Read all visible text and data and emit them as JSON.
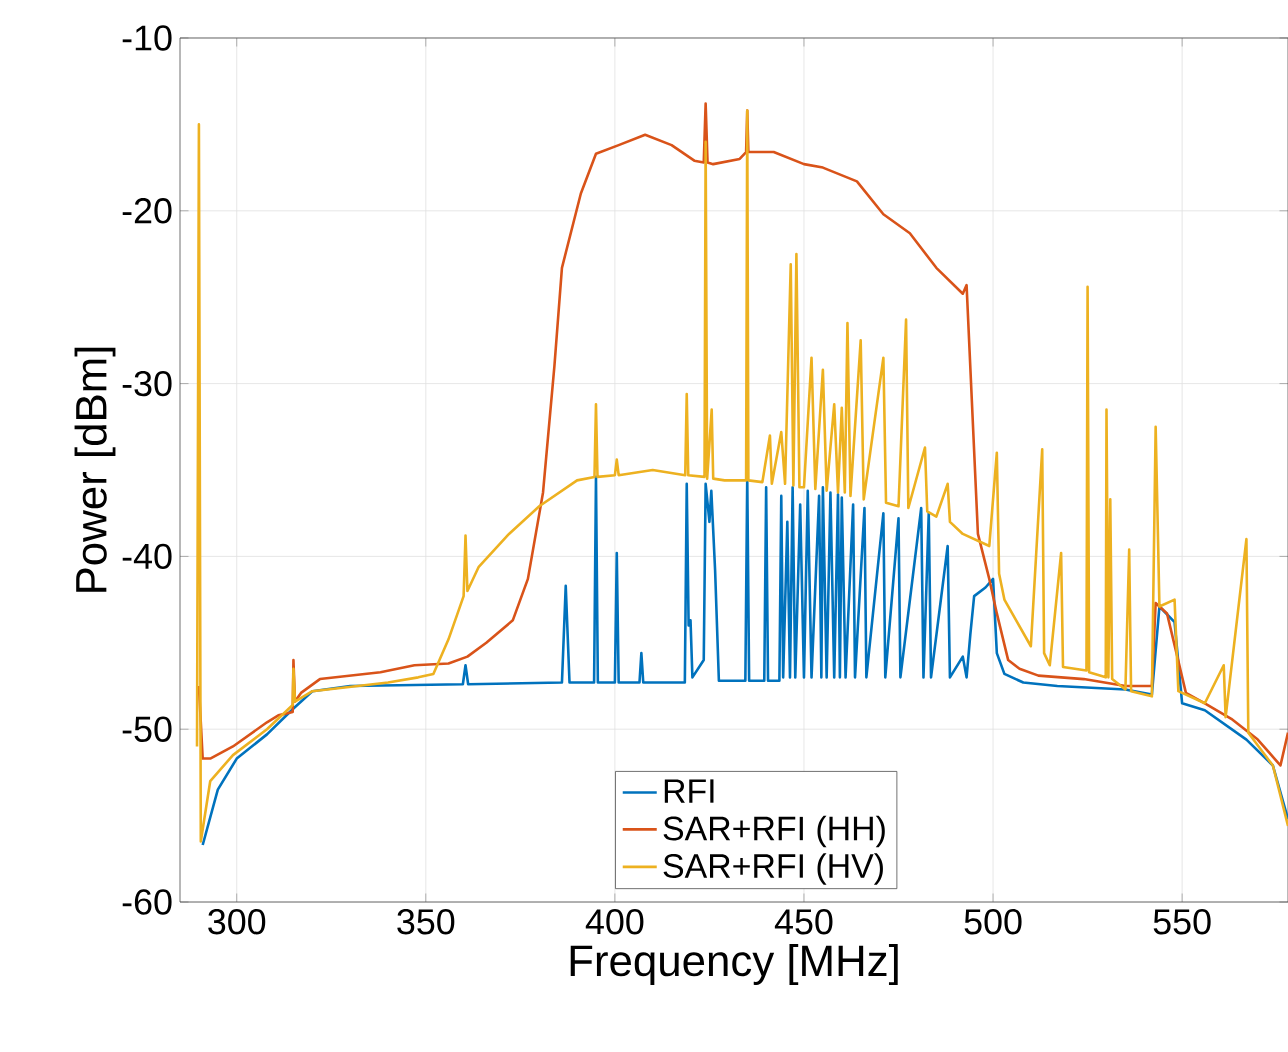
{
  "chart_data": {
    "type": "line",
    "xlabel": "Frequency [MHz]",
    "ylabel": "Power [dBm]",
    "xlim": [
      285,
      578
    ],
    "xticks": [
      300,
      350,
      400,
      450,
      500,
      550
    ],
    "ylim": [
      -60,
      -10
    ],
    "yticks": [
      -60,
      -50,
      -40,
      -30,
      -20,
      -10
    ],
    "grid": true,
    "legend": "bottom",
    "marker": "none",
    "line_style": "solid",
    "series": [
      {
        "name": "RFI",
        "color": "#0072bd",
        "x": [
          291,
          295,
          300,
          308,
          315,
          320,
          330,
          359.8,
          360.5,
          361.2,
          386,
          387,
          388,
          394.5,
          395,
          395.5,
          400,
          400.5,
          401,
          406.5,
          407,
          407.5,
          418.5,
          419,
          419.5,
          420,
          420.5,
          423.5,
          424,
          425,
          425.5,
          426.5,
          427.5,
          434.5,
          435,
          435.5,
          439.5,
          440,
          440.5,
          443.5,
          444,
          444.5,
          445.6,
          446.3,
          447,
          447.7,
          449,
          450,
          451,
          452,
          454,
          454.6,
          455,
          456,
          457,
          458,
          459,
          459.5,
          460,
          461,
          463,
          463.5,
          466,
          466.5,
          471,
          471.5,
          475,
          475.5,
          481,
          481.6,
          483,
          483.6,
          488,
          488.6,
          492,
          493,
          494,
          495,
          498,
          500,
          501,
          503,
          508,
          517,
          535,
          542,
          544,
          548,
          550,
          556,
          567,
          574,
          578
        ],
        "values": [
          -56.7,
          -53.5,
          -51.7,
          -50.3,
          -48.8,
          -47.8,
          -47.5,
          -47.4,
          -46.3,
          -47.4,
          -47.3,
          -41.7,
          -47.3,
          -47.3,
          -35.4,
          -47.3,
          -47.3,
          -39.8,
          -47.3,
          -47.3,
          -45.6,
          -47.3,
          -47.3,
          -35.8,
          -44,
          -43.7,
          -47,
          -46,
          -35.8,
          -38,
          -36.2,
          -40.8,
          -47.2,
          -47.2,
          -35.4,
          -47.2,
          -47.2,
          -36,
          -47.2,
          -47.2,
          -36.5,
          -47,
          -38,
          -47,
          -36,
          -47,
          -37,
          -47,
          -36.2,
          -47,
          -36.5,
          -47,
          -36,
          -47,
          -36.3,
          -47,
          -36.4,
          -47,
          -36.6,
          -47,
          -37,
          -47,
          -37.2,
          -47,
          -37.5,
          -47,
          -37.8,
          -47,
          -37.2,
          -47,
          -37.5,
          -47,
          -39.4,
          -47,
          -45.8,
          -47,
          -44.5,
          -42.3,
          -41.8,
          -41.3,
          -45.6,
          -46.8,
          -47.3,
          -47.5,
          -47.7,
          -48,
          -42.9,
          -43.8,
          -48.5,
          -48.9,
          -50.6,
          -52.1,
          -55.2
        ]
      },
      {
        "name": "SAR+RFI (HH)",
        "color": "#d95319",
        "x": [
          290,
          291,
          293,
          299,
          308,
          311,
          314.8,
          315,
          315.4,
          317,
          322,
          338,
          347,
          356,
          361,
          366,
          373,
          377,
          381,
          384,
          386,
          391,
          395,
          401,
          408,
          415,
          421,
          423.5,
          424,
          424.5,
          426,
          433,
          434.7,
          435,
          435.3,
          442,
          450,
          455,
          464,
          471,
          478,
          485,
          492,
          493,
          496,
          499,
          501,
          504,
          507,
          512,
          524,
          535,
          542,
          543,
          546,
          551,
          556,
          563,
          570,
          576,
          578
        ],
        "values": [
          -47.5,
          -51.7,
          -51.7,
          -51,
          -49.6,
          -49.2,
          -49,
          -46,
          -48.4,
          -47.9,
          -47.1,
          -46.7,
          -46.3,
          -46.2,
          -45.8,
          -45,
          -43.7,
          -41.3,
          -36.3,
          -29,
          -23.3,
          -19,
          -16.7,
          -16.2,
          -15.6,
          -16.2,
          -17.1,
          -17.2,
          -13.8,
          -17.2,
          -17.3,
          -17,
          -16.6,
          -14.2,
          -16.6,
          -16.6,
          -17.3,
          -17.5,
          -18.3,
          -20.2,
          -21.3,
          -23.3,
          -24.8,
          -24.3,
          -38.7,
          -41.3,
          -43.3,
          -46,
          -46.5,
          -46.9,
          -47.1,
          -47.5,
          -47.5,
          -42.7,
          -43.3,
          -47.9,
          -48.5,
          -49.4,
          -50.6,
          -52.1,
          -50.2
        ]
      },
      {
        "name": "SAR+RFI (HV)",
        "color": "#edb120",
        "x": [
          289.5,
          290,
          290.5,
          293,
          299,
          308,
          314.8,
          315,
          315.4,
          320,
          340,
          348,
          352,
          356,
          360,
          360.5,
          361,
          364,
          372,
          380,
          390,
          394.6,
          395,
          395.4,
          400,
          400.5,
          401,
          410,
          418.6,
          419,
          419.4,
          423.7,
          424,
          424.4,
          425.6,
          426,
          429,
          434.7,
          435,
          435.3,
          439,
          441,
          441.5,
          444,
          445,
          446.5,
          447.2,
          448,
          448.8,
          450,
          452,
          453,
          455,
          456,
          458,
          459,
          460,
          460.8,
          461.5,
          462.3,
          465,
          465.8,
          471,
          471.7,
          475,
          477,
          477.6,
          482,
          482.6,
          485,
          488,
          488.6,
          492,
          499,
          501,
          501.6,
          503,
          510,
          513,
          513.5,
          515,
          518,
          518.5,
          524.7,
          525,
          525.4,
          529.8,
          530,
          530.5,
          531,
          531.5,
          535,
          536,
          536.5,
          542,
          543,
          544,
          548,
          549,
          556,
          561,
          561.5,
          567,
          567.5,
          574,
          578
        ],
        "values": [
          -51,
          -15,
          -56.5,
          -53,
          -51.5,
          -50,
          -48.6,
          -46.5,
          -48.4,
          -47.8,
          -47.3,
          -47,
          -46.8,
          -44.8,
          -42.3,
          -38.8,
          -42,
          -40.6,
          -38.7,
          -37.1,
          -35.6,
          -35.4,
          -31.2,
          -35.4,
          -35.3,
          -34.4,
          -35.3,
          -35,
          -35.3,
          -30.6,
          -35.3,
          -35.4,
          -16,
          -35.5,
          -31.5,
          -35.5,
          -35.6,
          -35.6,
          -14.2,
          -35.6,
          -35.7,
          -33,
          -35.8,
          -32.8,
          -35.8,
          -23.1,
          -35.9,
          -22.5,
          -36,
          -36,
          -28.5,
          -36.1,
          -29.2,
          -36.2,
          -31.2,
          -36.3,
          -31.4,
          -36.3,
          -26.5,
          -36.5,
          -27.5,
          -36.7,
          -28.5,
          -36.9,
          -37.1,
          -26.3,
          -37.2,
          -33.7,
          -37.4,
          -37.7,
          -35.8,
          -38,
          -38.7,
          -39.4,
          -34,
          -41,
          -42.5,
          -45.2,
          -33.8,
          -45.6,
          -46.3,
          -39.8,
          -46.4,
          -46.6,
          -24.4,
          -46.7,
          -47,
          -31.5,
          -47,
          -36.7,
          -47.1,
          -47.7,
          -39.6,
          -47.8,
          -48.1,
          -32.5,
          -42.9,
          -42.5,
          -47.8,
          -48.5,
          -46.3,
          -49.3,
          -39,
          -50.2,
          -52.1,
          -55.6
        ]
      }
    ]
  }
}
